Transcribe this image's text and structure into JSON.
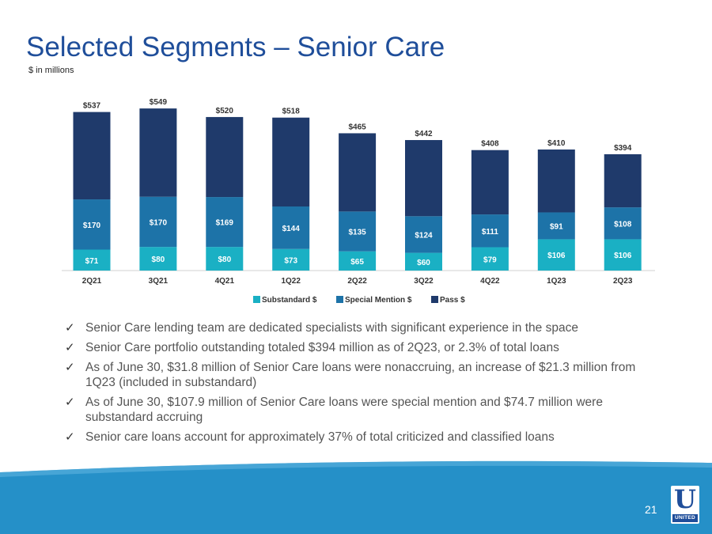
{
  "slide": {
    "title": "Selected Segments – Senior Care",
    "subtitle": "$ in millions",
    "page_number": "21",
    "logo_text": "UNITED"
  },
  "colors": {
    "title": "#1f4e9a",
    "substandard": "#1ab0c4",
    "special_mention": "#1d73a8",
    "pass": "#1f3a6b",
    "footer": "#2590c8"
  },
  "chart_data": {
    "type": "bar",
    "stacked": true,
    "title": "",
    "xlabel": "",
    "ylabel": "",
    "ylim": [
      0,
      560
    ],
    "categories": [
      "2Q21",
      "3Q21",
      "4Q21",
      "1Q22",
      "2Q22",
      "3Q22",
      "4Q22",
      "1Q23",
      "2Q23"
    ],
    "series": [
      {
        "name": "Substandard $",
        "values": [
          71,
          80,
          80,
          73,
          65,
          60,
          79,
          106,
          106
        ],
        "labels": [
          "$71",
          "$80",
          "$80",
          "$73",
          "$65",
          "$60",
          "$79",
          "$106",
          "$106"
        ]
      },
      {
        "name": "Special Mention $",
        "values": [
          170,
          170,
          169,
          144,
          135,
          124,
          111,
          91,
          108
        ],
        "labels": [
          "$170",
          "$170",
          "$169",
          "$144",
          "$135",
          "$124",
          "$111",
          "$91",
          "$108"
        ]
      },
      {
        "name": "Pass $",
        "values": [
          296,
          299,
          271,
          301,
          265,
          258,
          218,
          213,
          180
        ]
      }
    ],
    "totals": [
      537,
      549,
      520,
      518,
      465,
      442,
      408,
      410,
      394
    ],
    "total_labels": [
      "$537",
      "$549",
      "$520",
      "$518",
      "$465",
      "$442",
      "$408",
      "$410",
      "$394"
    ],
    "legend_position": "bottom"
  },
  "bullets": [
    "Senior Care lending team are dedicated specialists with significant experience in the space",
    "Senior Care portfolio outstanding totaled $394 million as of 2Q23, or 2.3% of total loans",
    "As of June 30, $31.8 million of Senior Care loans were nonaccruing, an increase of $21.3 million from 1Q23 (included in substandard)",
    "As of June 30, $107.9 million of Senior Care loans were special mention and $74.7 million were substandard accruing",
    "Senior care loans account for approximately 37% of total criticized and classified loans"
  ]
}
